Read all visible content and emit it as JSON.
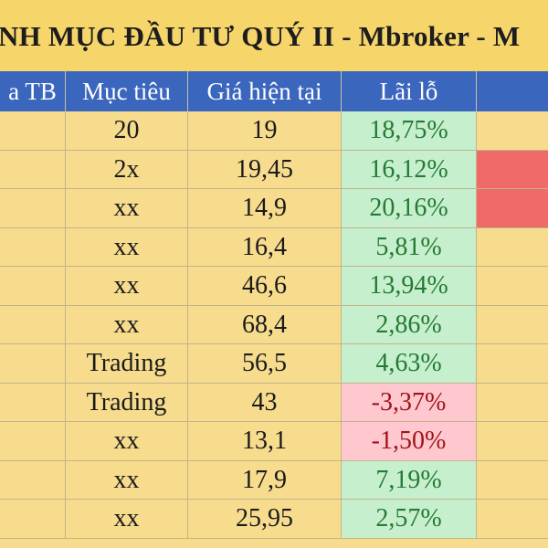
{
  "title": "NH MỤC ĐẦU TƯ QUÝ II - Mbroker - M",
  "headers": [
    "a TB",
    "Mục tiêu",
    "Giá hiện tại",
    "Lãi lỗ",
    ""
  ],
  "rows": [
    {
      "target": "20",
      "price": "19",
      "pl": "18,75%",
      "pl_status": "positive",
      "flag": "none"
    },
    {
      "target": "2x",
      "price": "19,45",
      "pl": "16,12%",
      "pl_status": "positive",
      "flag": "red"
    },
    {
      "target": "xx",
      "price": "14,9",
      "pl": "20,16%",
      "pl_status": "positive",
      "flag": "red"
    },
    {
      "target": "xx",
      "price": "16,4",
      "pl": "5,81%",
      "pl_status": "positive",
      "flag": "none"
    },
    {
      "target": "xx",
      "price": "46,6",
      "pl": "13,94%",
      "pl_status": "positive",
      "flag": "none"
    },
    {
      "target": "xx",
      "price": "68,4",
      "pl": "2,86%",
      "pl_status": "positive",
      "flag": "none"
    },
    {
      "target": "Trading",
      "price": "56,5",
      "pl": "4,63%",
      "pl_status": "positive",
      "flag": "none"
    },
    {
      "target": "Trading",
      "price": "43",
      "pl": "-3,37%",
      "pl_status": "negative",
      "flag": "none"
    },
    {
      "target": "xx",
      "price": "13,1",
      "pl": "-1,50%",
      "pl_status": "negative",
      "flag": "none"
    },
    {
      "target": "xx",
      "price": "17,9",
      "pl": "7,19%",
      "pl_status": "positive",
      "flag": "none"
    },
    {
      "target": "xx",
      "price": "25,95",
      "pl": "2,57%",
      "pl_status": "positive",
      "flag": "none"
    }
  ],
  "colors": {
    "sheet_background": "#f7dc8e",
    "title_background": "#f6d56b",
    "header_background": "#3b66bd",
    "profit_fill": "#c6efce",
    "profit_text": "#247a33",
    "loss_fill": "#ffc7ce",
    "loss_text": "#a0141a",
    "flag_red": "#f06a6a"
  }
}
